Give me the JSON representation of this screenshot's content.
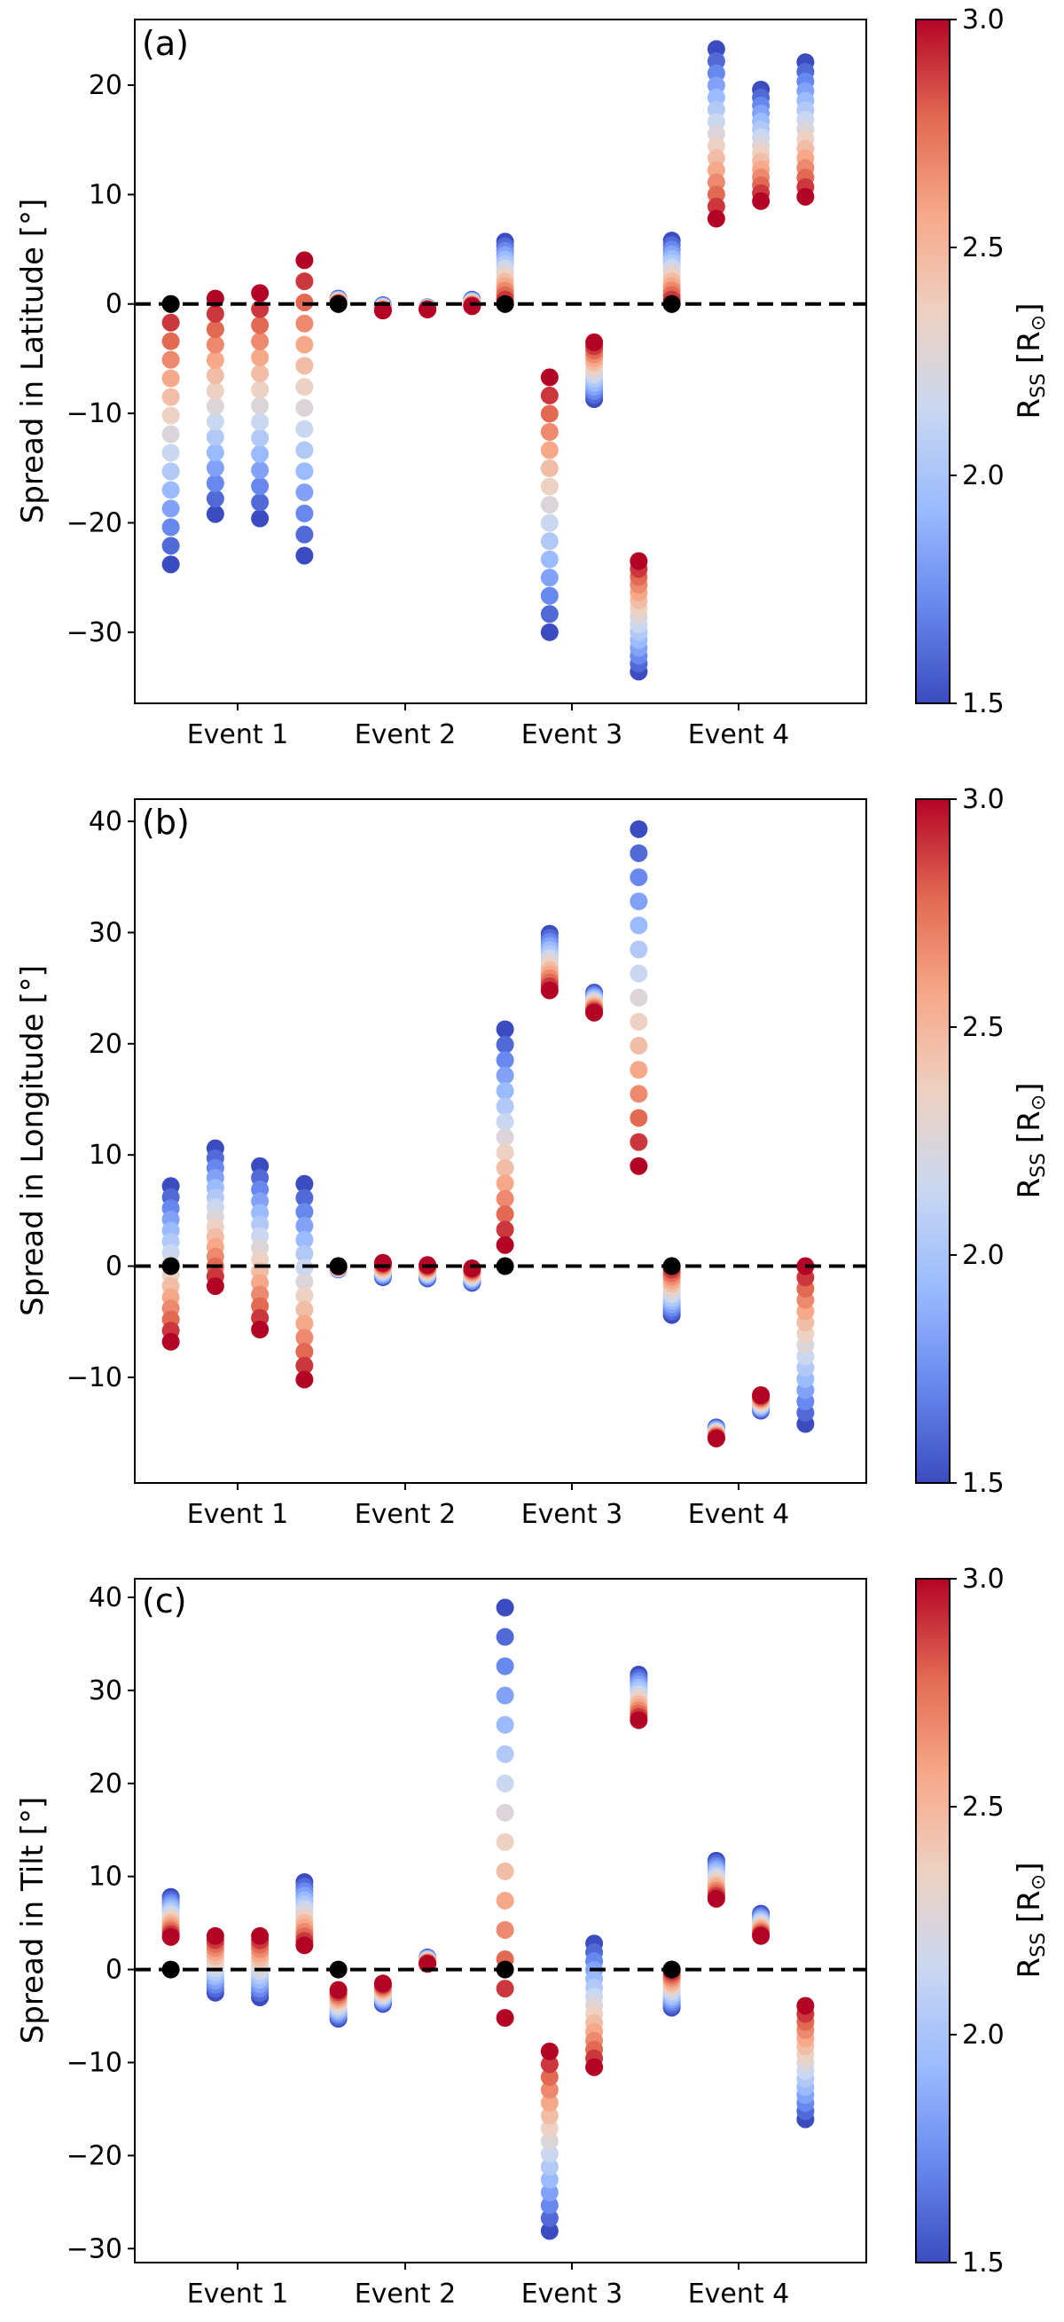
{
  "colorbar": {
    "label": "R_SS [R_⊙]",
    "label_main": "R",
    "label_sub": "SS",
    "label_suffix": " [R",
    "label_sun": "⊙",
    "label_close": "]",
    "min": 1.5,
    "max": 3.0,
    "ticks": [
      "3.0",
      "2.5",
      "2.0",
      "1.5"
    ],
    "tick_values": [
      3.0,
      2.5,
      2.0,
      1.5
    ],
    "colors": [
      "#3b4cc0",
      "#6788ee",
      "#9abbff",
      "#c9d7f0",
      "#edd1c2",
      "#f7a889",
      "#e26952",
      "#b40426"
    ]
  },
  "reference_color": "#000000",
  "chart_data": [
    {
      "type": "scatter",
      "panel_label": "(a)",
      "ylabel": "Spread in Latitude [°]",
      "xlabel": "",
      "categories": [
        "Event 1",
        "Event 2",
        "Event 3",
        "Event 4"
      ],
      "ylim": [
        -36.5,
        26
      ],
      "yticks": [
        20,
        10,
        0,
        -10,
        -20,
        -30
      ],
      "ytick_labels": [
        "20",
        "10",
        "0",
        "−10",
        "−20",
        "−30"
      ],
      "reference_line": 0,
      "columns": [
        {
          "event": 1,
          "offset": -0.375,
          "start": -23.8,
          "end": 0,
          "ref": true
        },
        {
          "event": 1,
          "offset": -0.125,
          "start": -19.2,
          "end": 0.5
        },
        {
          "event": 1,
          "offset": 0.125,
          "start": -19.6,
          "end": 1.0
        },
        {
          "event": 1,
          "offset": 0.375,
          "start": -23.0,
          "end": 4.0
        },
        {
          "event": 2,
          "offset": -0.375,
          "start": 0.5,
          "end": 0,
          "ref": true
        },
        {
          "event": 2,
          "offset": -0.125,
          "start": -0.1,
          "end": -0.6
        },
        {
          "event": 2,
          "offset": 0.125,
          "start": -0.3,
          "end": -0.5
        },
        {
          "event": 2,
          "offset": 0.375,
          "start": 0.4,
          "end": -0.2
        },
        {
          "event": 3,
          "offset": -0.375,
          "start": 5.7,
          "end": 0,
          "ref": true
        },
        {
          "event": 3,
          "offset": -0.125,
          "start": -30.0,
          "end": -6.7
        },
        {
          "event": 3,
          "offset": 0.125,
          "start": -8.7,
          "end": -3.5
        },
        {
          "event": 3,
          "offset": 0.375,
          "start": -33.6,
          "end": -23.5
        },
        {
          "event": 4,
          "offset": -0.375,
          "start": 5.8,
          "end": 0,
          "ref": true
        },
        {
          "event": 4,
          "offset": -0.125,
          "start": 23.3,
          "end": 7.8
        },
        {
          "event": 4,
          "offset": 0.125,
          "start": 19.6,
          "end": 9.4
        },
        {
          "event": 4,
          "offset": 0.375,
          "start": 22.1,
          "end": 9.8
        }
      ]
    },
    {
      "type": "scatter",
      "panel_label": "(b)",
      "ylabel": "Spread in Longitude [°]",
      "xlabel": "",
      "categories": [
        "Event 1",
        "Event 2",
        "Event 3",
        "Event 4"
      ],
      "ylim": [
        -19.5,
        42
      ],
      "yticks": [
        40,
        30,
        20,
        10,
        0,
        -10
      ],
      "ytick_labels": [
        "40",
        "30",
        "20",
        "10",
        "0",
        "−10"
      ],
      "reference_line": 0,
      "columns": [
        {
          "event": 1,
          "offset": -0.375,
          "start": 7.2,
          "end": -6.8,
          "ref": true
        },
        {
          "event": 1,
          "offset": -0.125,
          "start": 10.6,
          "end": -1.8
        },
        {
          "event": 1,
          "offset": 0.125,
          "start": 9.0,
          "end": -5.7
        },
        {
          "event": 1,
          "offset": 0.375,
          "start": 7.4,
          "end": -10.2
        },
        {
          "event": 2,
          "offset": -0.375,
          "start": -0.3,
          "end": 0,
          "ref": true
        },
        {
          "event": 2,
          "offset": -0.125,
          "start": -1.0,
          "end": 0.3
        },
        {
          "event": 2,
          "offset": 0.125,
          "start": -1.1,
          "end": 0.1
        },
        {
          "event": 2,
          "offset": 0.375,
          "start": -1.5,
          "end": -0.2
        },
        {
          "event": 3,
          "offset": -0.375,
          "start": 21.3,
          "end": 1.9,
          "ref": true
        },
        {
          "event": 3,
          "offset": -0.125,
          "start": 29.9,
          "end": 24.8
        },
        {
          "event": 3,
          "offset": 0.125,
          "start": 24.6,
          "end": 22.8
        },
        {
          "event": 3,
          "offset": 0.375,
          "start": 39.3,
          "end": 9.0
        },
        {
          "event": 4,
          "offset": -0.375,
          "start": -4.4,
          "end": 0,
          "ref": true
        },
        {
          "event": 4,
          "offset": -0.125,
          "start": -14.5,
          "end": -15.5
        },
        {
          "event": 4,
          "offset": 0.125,
          "start": -13.0,
          "end": -11.6
        },
        {
          "event": 4,
          "offset": 0.375,
          "start": -14.2,
          "end": 0.0
        }
      ]
    },
    {
      "type": "scatter",
      "panel_label": "(c)",
      "ylabel": "Spread in Tilt [°]",
      "xlabel": "",
      "categories": [
        "Event 1",
        "Event 2",
        "Event 3",
        "Event 4"
      ],
      "ylim": [
        -31.5,
        42
      ],
      "yticks": [
        40,
        30,
        20,
        10,
        0,
        -10,
        -20,
        -30
      ],
      "ytick_labels": [
        "40",
        "30",
        "20",
        "10",
        "0",
        "−10",
        "−20",
        "−30"
      ],
      "reference_line": 0,
      "columns": [
        {
          "event": 1,
          "offset": -0.375,
          "start": 7.8,
          "end": 3.5,
          "ref": true
        },
        {
          "event": 1,
          "offset": -0.125,
          "start": -2.5,
          "end": 3.6
        },
        {
          "event": 1,
          "offset": 0.125,
          "start": -3.0,
          "end": 3.6
        },
        {
          "event": 1,
          "offset": 0.375,
          "start": 9.4,
          "end": 2.6
        },
        {
          "event": 2,
          "offset": -0.375,
          "start": -5.3,
          "end": -2.2,
          "ref": true
        },
        {
          "event": 2,
          "offset": -0.125,
          "start": -3.7,
          "end": -1.5
        },
        {
          "event": 2,
          "offset": 0.125,
          "start": 1.3,
          "end": 0.6
        },
        {
          "event": 3,
          "offset": -0.375,
          "start": 38.9,
          "end": -5.2,
          "ref": true
        },
        {
          "event": 3,
          "offset": -0.125,
          "start": -28.1,
          "end": -8.8
        },
        {
          "event": 3,
          "offset": 0.125,
          "start": 2.8,
          "end": -10.5
        },
        {
          "event": 3,
          "offset": 0.375,
          "start": 31.7,
          "end": 26.8
        },
        {
          "event": 4,
          "offset": -0.375,
          "start": -4.1,
          "end": 0,
          "ref": true
        },
        {
          "event": 4,
          "offset": -0.125,
          "start": 11.7,
          "end": 7.6
        },
        {
          "event": 4,
          "offset": 0.125,
          "start": 6.0,
          "end": 3.6
        },
        {
          "event": 4,
          "offset": 0.375,
          "start": -16.1,
          "end": -3.9
        }
      ]
    }
  ]
}
